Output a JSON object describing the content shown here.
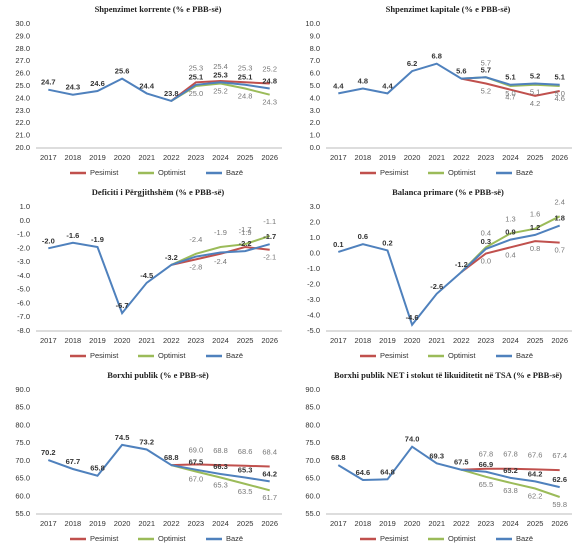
{
  "chart_data": [
    {
      "type": "line",
      "title": "Shpenzimet korrente (% e PBB-së)",
      "categories": [
        "2017",
        "2018",
        "2019",
        "2020",
        "2021",
        "2022",
        "2023",
        "2024",
        "2025",
        "2026"
      ],
      "series": [
        {
          "name": "Pesimist",
          "color": "#c0504d",
          "values": [
            null,
            null,
            null,
            null,
            null,
            23.8,
            25.3,
            25.4,
            25.3,
            25.2
          ],
          "value_labels": [
            null,
            null,
            null,
            null,
            null,
            null,
            "25.3",
            "25.4",
            "25.3",
            "25.2"
          ]
        },
        {
          "name": "Optimist",
          "color": "#9bbb59",
          "values": [
            null,
            null,
            null,
            null,
            null,
            23.8,
            25.0,
            25.2,
            24.8,
            24.3
          ],
          "value_labels": [
            null,
            null,
            null,
            null,
            null,
            null,
            "25.0",
            "25.2",
            "24.8",
            "24.3"
          ]
        },
        {
          "name": "Bazë",
          "color": "#4f81bd",
          "values": [
            24.7,
            24.3,
            24.6,
            25.6,
            24.4,
            23.8,
            25.1,
            25.3,
            25.1,
            24.8
          ],
          "value_labels": [
            "24.7",
            "24.3",
            "24.6",
            "25.6",
            "24.4",
            "23.8",
            "25.1",
            "25.3",
            "25.1",
            "24.8"
          ]
        }
      ],
      "ylim": [
        20,
        30
      ],
      "yticks": [
        {
          "value": 20,
          "label": "20.0"
        },
        {
          "value": 21,
          "label": "21.0"
        },
        {
          "value": 22,
          "label": "22.0"
        },
        {
          "value": 23,
          "label": "23.0"
        },
        {
          "value": 24,
          "label": "24.0"
        },
        {
          "value": 25,
          "label": "25.0"
        },
        {
          "value": 26,
          "label": "26.0"
        },
        {
          "value": 27,
          "label": "27.0"
        },
        {
          "value": 28,
          "label": "28.0"
        },
        {
          "value": 29,
          "label": "29.0"
        },
        {
          "value": 30,
          "label": "30.0"
        }
      ],
      "grid": false
    },
    {
      "type": "line",
      "title": "Shpenzimet kapitale (% e PBB-së)",
      "categories": [
        "2017",
        "2018",
        "2019",
        "2020",
        "2021",
        "2022",
        "2023",
        "2024",
        "2025",
        "2026"
      ],
      "series": [
        {
          "name": "Pesimist",
          "color": "#c0504d",
          "values": [
            null,
            null,
            null,
            null,
            null,
            5.6,
            5.2,
            4.7,
            4.2,
            4.6
          ],
          "value_labels": [
            null,
            null,
            null,
            null,
            null,
            null,
            "5.2",
            "4.7",
            "4.2",
            "4.6"
          ]
        },
        {
          "name": "Optimist",
          "color": "#9bbb59",
          "values": [
            null,
            null,
            null,
            null,
            null,
            5.6,
            5.7,
            5.0,
            5.1,
            5.0
          ],
          "value_labels": [
            null,
            null,
            null,
            null,
            null,
            null,
            "5.7",
            "5.0",
            "5.1",
            "5.0"
          ]
        },
        {
          "name": "Bazë",
          "color": "#4f81bd",
          "values": [
            4.4,
            4.8,
            4.4,
            6.2,
            6.8,
            5.6,
            5.7,
            5.1,
            5.2,
            5.1
          ],
          "value_labels": [
            "4.4",
            "4.8",
            "4.4",
            "6.2",
            "6.8",
            "5.6",
            "5.7",
            "5.1",
            "5.2",
            "5.1"
          ]
        }
      ],
      "ylim": [
        0,
        10
      ],
      "yticks": [
        {
          "value": 0,
          "label": "0.0"
        },
        {
          "value": 1,
          "label": "1.0"
        },
        {
          "value": 2,
          "label": "2.0"
        },
        {
          "value": 3,
          "label": "3.0"
        },
        {
          "value": 4,
          "label": "4.0"
        },
        {
          "value": 5,
          "label": "5.0"
        },
        {
          "value": 6,
          "label": "6.0"
        },
        {
          "value": 7,
          "label": "7.0"
        },
        {
          "value": 8,
          "label": "8.0"
        },
        {
          "value": 9,
          "label": "9.0"
        },
        {
          "value": 10,
          "label": "10.0"
        }
      ],
      "grid": false
    },
    {
      "type": "line",
      "title": "Deficiti i Përgjithshëm (% e PBB-së)",
      "categories": [
        "2017",
        "2018",
        "2019",
        "2020",
        "2021",
        "2022",
        "2023",
        "2024",
        "2025",
        "2026"
      ],
      "series": [
        {
          "name": "Pesimist",
          "color": "#c0504d",
          "values": [
            null,
            null,
            null,
            null,
            null,
            -3.2,
            -2.8,
            -2.4,
            -1.9,
            -2.1
          ],
          "value_labels": [
            null,
            null,
            null,
            null,
            null,
            null,
            "-2.8",
            "-2.4",
            "-1.9",
            "-2.1"
          ]
        },
        {
          "name": "Optimist",
          "color": "#9bbb59",
          "values": [
            null,
            null,
            null,
            null,
            null,
            -3.2,
            -2.4,
            -1.9,
            -1.7,
            -1.1
          ],
          "value_labels": [
            null,
            null,
            null,
            null,
            null,
            null,
            "-2.4",
            "-1.9",
            "-1.7",
            "-1.1"
          ]
        },
        {
          "name": "Bazë",
          "color": "#4f81bd",
          "values": [
            -2.0,
            -1.6,
            -1.9,
            -6.7,
            -4.5,
            -3.2,
            -2.6,
            -2.3,
            -2.2,
            -1.7
          ],
          "value_labels": [
            "-2.0",
            "-1.6",
            "-1.9",
            "-6.7",
            "-4.5",
            "-3.2",
            null,
            null,
            "-2.2",
            "-1.7"
          ]
        }
      ],
      "ylim": [
        -8,
        1
      ],
      "yticks": [
        {
          "value": -8,
          "label": "-8.0"
        },
        {
          "value": -7,
          "label": "-7.0"
        },
        {
          "value": -6,
          "label": "-6.0"
        },
        {
          "value": -5,
          "label": "-5.0"
        },
        {
          "value": -4,
          "label": "-4.0"
        },
        {
          "value": -3,
          "label": "-3.0"
        },
        {
          "value": -2,
          "label": "-2.0"
        },
        {
          "value": -1,
          "label": "-1.0"
        },
        {
          "value": 0,
          "label": "0.0"
        },
        {
          "value": 1,
          "label": "1.0"
        }
      ],
      "grid": false
    },
    {
      "type": "line",
      "title": "Balanca primare (% e PBB-së)",
      "categories": [
        "2017",
        "2018",
        "2019",
        "2020",
        "2021",
        "2022",
        "2023",
        "2024",
        "2025",
        "2026"
      ],
      "series": [
        {
          "name": "Pesimist",
          "color": "#c0504d",
          "values": [
            null,
            null,
            null,
            null,
            null,
            -1.2,
            0.0,
            0.4,
            0.8,
            0.7
          ],
          "value_labels": [
            null,
            null,
            null,
            null,
            null,
            null,
            "0.0",
            "0.4",
            "0.8",
            "0.7"
          ]
        },
        {
          "name": "Optimist",
          "color": "#9bbb59",
          "values": [
            null,
            null,
            null,
            null,
            null,
            -1.2,
            0.4,
            1.3,
            1.6,
            2.4
          ],
          "value_labels": [
            null,
            null,
            null,
            null,
            null,
            null,
            "0.4",
            "1.3",
            "1.6",
            "2.4"
          ]
        },
        {
          "name": "Bazë",
          "color": "#4f81bd",
          "values": [
            0.1,
            0.6,
            0.2,
            -4.6,
            -2.6,
            -1.2,
            0.3,
            0.9,
            1.2,
            1.8
          ],
          "value_labels": [
            "0.1",
            "0.6",
            "0.2",
            "-4.6",
            "-2.6",
            "-1.2",
            "0.3",
            "0.9",
            "1.2",
            "1.8"
          ]
        }
      ],
      "ylim": [
        -5,
        3
      ],
      "yticks": [
        {
          "value": -5,
          "label": "-5.0"
        },
        {
          "value": -4,
          "label": "-4.0"
        },
        {
          "value": -3,
          "label": "-3.0"
        },
        {
          "value": -2,
          "label": "-2.0"
        },
        {
          "value": -1,
          "label": "-1.0"
        },
        {
          "value": 0,
          "label": "0.0"
        },
        {
          "value": 1,
          "label": "1.0"
        },
        {
          "value": 2,
          "label": "2.0"
        },
        {
          "value": 3,
          "label": "3.0"
        }
      ],
      "grid": false
    },
    {
      "type": "line",
      "title": "Borxhi publik (% e PBB-së)",
      "categories": [
        "2017",
        "2018",
        "2019",
        "2020",
        "2021",
        "2022",
        "2023",
        "2024",
        "2025",
        "2026"
      ],
      "series": [
        {
          "name": "Pesimist",
          "color": "#c0504d",
          "values": [
            null,
            null,
            null,
            null,
            null,
            68.8,
            69.0,
            68.8,
            68.6,
            68.4
          ],
          "value_labels": [
            null,
            null,
            null,
            null,
            null,
            null,
            "69.0",
            "68.8",
            "68.6",
            "68.4"
          ]
        },
        {
          "name": "Optimist",
          "color": "#9bbb59",
          "values": [
            null,
            null,
            null,
            null,
            null,
            68.8,
            67.0,
            65.3,
            63.5,
            61.7
          ],
          "value_labels": [
            null,
            null,
            null,
            null,
            null,
            null,
            "67.0",
            "65.3",
            "63.5",
            "61.7"
          ]
        },
        {
          "name": "Bazë",
          "color": "#4f81bd",
          "values": [
            70.2,
            67.7,
            65.8,
            74.5,
            73.2,
            68.8,
            67.5,
            66.3,
            65.3,
            64.2
          ],
          "value_labels": [
            "70.2",
            "67.7",
            "65.8",
            "74.5",
            "73.2",
            "68.8",
            "67.5",
            "66.3",
            "65.3",
            "64.2"
          ]
        }
      ],
      "ylim": [
        55,
        90
      ],
      "yticks": [
        {
          "value": 55,
          "label": "55.0"
        },
        {
          "value": 60,
          "label": "60.0"
        },
        {
          "value": 65,
          "label": "65.0"
        },
        {
          "value": 70,
          "label": "70.0"
        },
        {
          "value": 75,
          "label": "75.0"
        },
        {
          "value": 80,
          "label": "80.0"
        },
        {
          "value": 85,
          "label": "85.0"
        },
        {
          "value": 90,
          "label": "90.0"
        }
      ],
      "grid": false
    },
    {
      "type": "line",
      "title": "Borxhi publik NET i stokut të likuiditetit në TSA (% e PBB-së)",
      "categories": [
        "2017",
        "2018",
        "2019",
        "2020",
        "2021",
        "2022",
        "2023",
        "2024",
        "2025",
        "2026"
      ],
      "series": [
        {
          "name": "Pesimist",
          "color": "#c0504d",
          "values": [
            null,
            null,
            null,
            null,
            null,
            67.5,
            67.8,
            67.8,
            67.6,
            67.4
          ],
          "value_labels": [
            null,
            null,
            null,
            null,
            null,
            null,
            "67.8",
            "67.8",
            "67.6",
            "67.4"
          ]
        },
        {
          "name": "Optimist",
          "color": "#9bbb59",
          "values": [
            null,
            null,
            null,
            null,
            null,
            67.5,
            65.5,
            63.8,
            62.2,
            59.8
          ],
          "value_labels": [
            null,
            null,
            null,
            null,
            null,
            null,
            "65.5",
            "63.8",
            "62.2",
            "59.8"
          ]
        },
        {
          "name": "Bazë",
          "color": "#4f81bd",
          "values": [
            68.8,
            64.6,
            64.8,
            74.0,
            69.3,
            67.5,
            66.9,
            65.2,
            64.2,
            62.6
          ],
          "value_labels": [
            "68.8",
            "64.6",
            "64.8",
            "74.0",
            "69.3",
            "67.5",
            "66.9",
            "65.2",
            "64.2",
            "62.6"
          ]
        }
      ],
      "ylim": [
        55,
        90
      ],
      "yticks": [
        {
          "value": 55,
          "label": "55.0"
        },
        {
          "value": 60,
          "label": "60.0"
        },
        {
          "value": 65,
          "label": "65.0"
        },
        {
          "value": 70,
          "label": "70.0"
        },
        {
          "value": 75,
          "label": "75.0"
        },
        {
          "value": 80,
          "label": "80.0"
        },
        {
          "value": 85,
          "label": "85.0"
        },
        {
          "value": 90,
          "label": "90.0"
        }
      ],
      "grid": false
    }
  ]
}
